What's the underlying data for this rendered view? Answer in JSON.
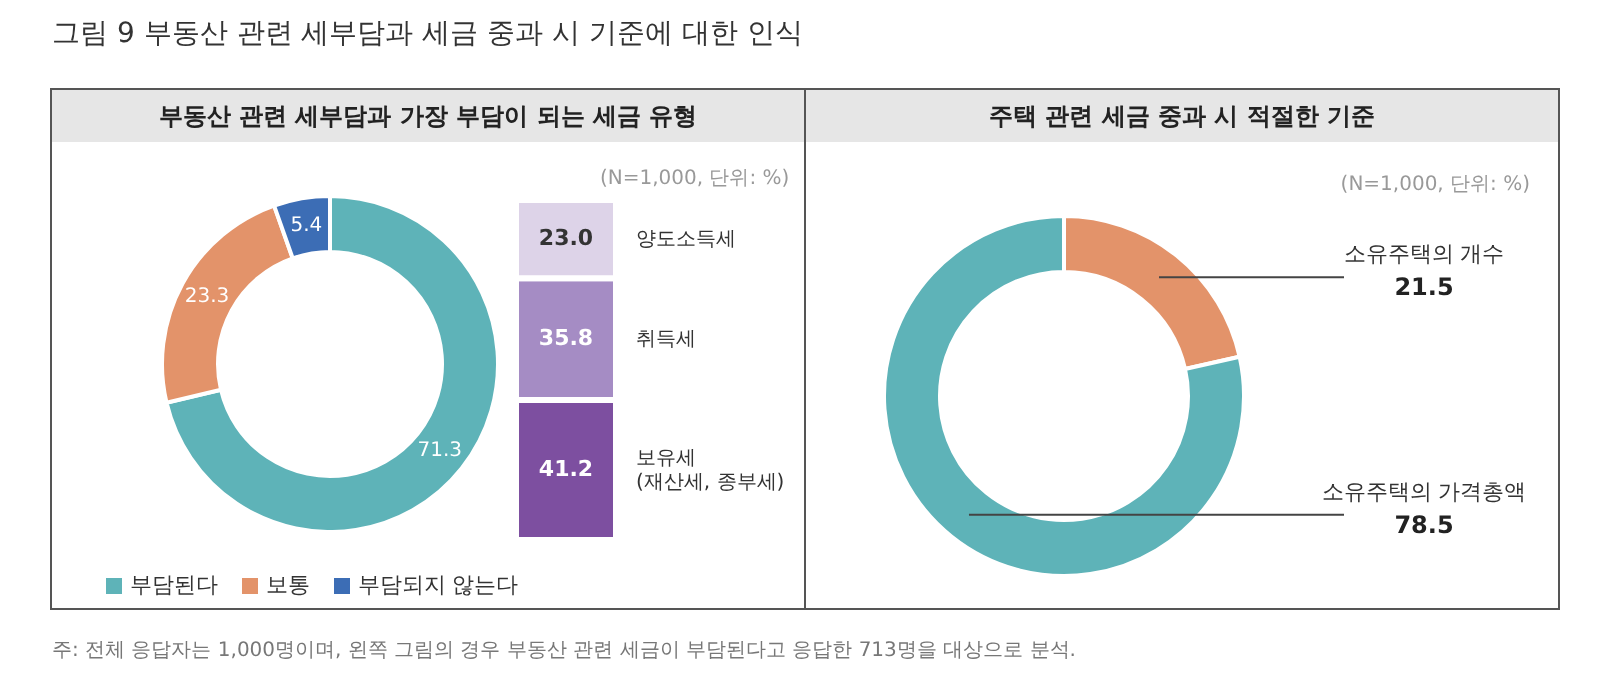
{
  "chart_data": [
    {
      "type": "donut",
      "title": "그림 9 부동산 관련 세부담과 세금 중과 시 기준에 대한 인식",
      "subtitle": "부동산 관련 세부담과 가장 부담이 되는 세금 유형",
      "categories": [
        "부담된다",
        "보통",
        "부담되지 않는다"
      ],
      "values": [
        71.3,
        23.3,
        5.4
      ],
      "colors": [
        "#5eb3b8",
        "#e3936a",
        "#3c6db5"
      ],
      "data_labels": true,
      "legend": "bottom",
      "annotations": [
        "주: 전체 응답자는 1,000명이며, 왼쪽 그림의 경우 부동산 관련 세금이 부담된다고 응답한 713명을 대상으로 분석."
      ]
    },
    {
      "type": "bar",
      "stacked": true,
      "categories": [
        null
      ],
      "series": [
        {
          "name": "보유세\n(재산세, 종부세)",
          "color": "#7d4fa0",
          "values": [
            41.2
          ],
          "value_labels": [
            "41.2"
          ]
        },
        {
          "name": "취득세",
          "color": "#a58cc4",
          "values": [
            35.8
          ],
          "value_labels": [
            "35.8"
          ]
        },
        {
          "name": "양도소득세",
          "color": "#ddd3e8",
          "values": [
            23.0
          ],
          "value_labels": [
            "23.0"
          ]
        }
      ],
      "annotations": [
        "(N=1,000, 단위: %)"
      ]
    },
    {
      "type": "donut",
      "title": "주택 관련 세금 중과 시 적절한 기준",
      "categories": [
        "소유주택의 개수",
        "소유주택의 가격총액"
      ],
      "values": [
        21.5,
        78.5
      ],
      "colors": [
        "#e3936a",
        "#5eb3b8"
      ],
      "data_labels": true,
      "annotations": [
        "(N=1,000, 단위: %)"
      ]
    }
  ]
}
